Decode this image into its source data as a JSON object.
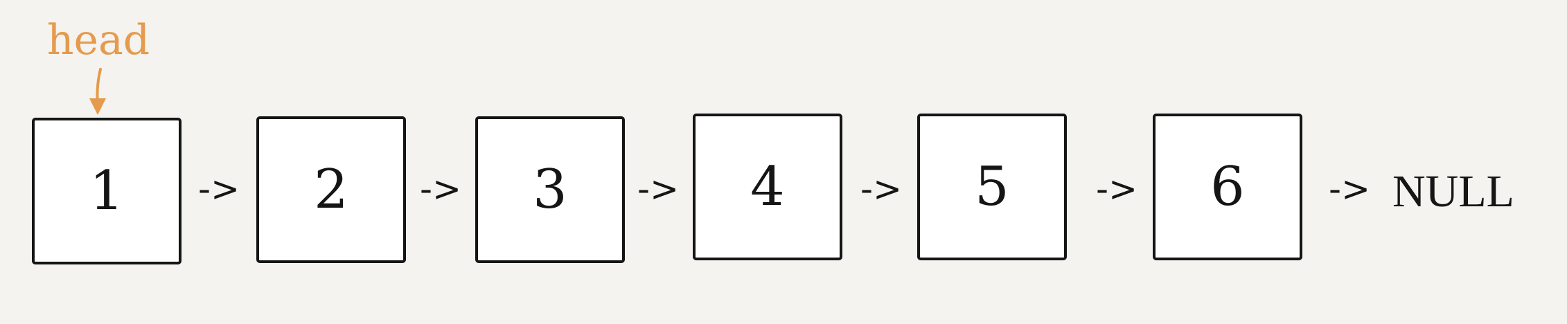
{
  "head": {
    "label": "head",
    "color": "#e59a4d"
  },
  "nodes": [
    {
      "value": "1"
    },
    {
      "value": "2"
    },
    {
      "value": "3"
    },
    {
      "value": "4"
    },
    {
      "value": "5"
    },
    {
      "value": "6"
    }
  ],
  "links": [
    {
      "label": "->"
    },
    {
      "label": "->"
    },
    {
      "label": "->"
    },
    {
      "label": "->"
    },
    {
      "label": "->"
    },
    {
      "label": "->"
    }
  ],
  "terminal": {
    "label": "NULL"
  }
}
